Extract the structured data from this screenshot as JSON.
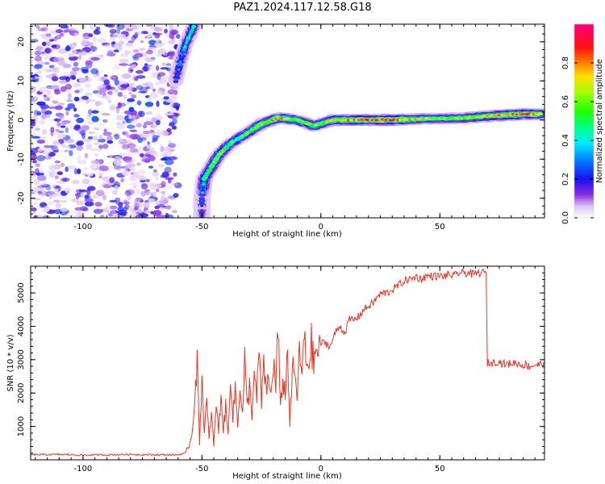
{
  "figure_title": "PAZ1.2024.117.12.58.G18",
  "chart_data": [
    {
      "type": "heatmap",
      "xlabel": "Height of straight line (km)",
      "ylabel": "Frequency (Hz)",
      "xlim": [
        -122,
        94
      ],
      "ylim": [
        -25,
        24.5
      ],
      "xticks": [
        -100,
        -50,
        0,
        50
      ],
      "yticks": [
        -20,
        -10,
        0,
        10,
        20
      ],
      "colorbar": {
        "label": "Normalized spectral amplitude",
        "ticks": [
          "0.0",
          "0.2",
          "0.4",
          "0.6",
          "0.8"
        ],
        "range": [
          0,
          1
        ],
        "colormap": "gist_ncar-like (white, purple, blue, cyan, green, yellow, orange, red, magenta)"
      },
      "noise_region_x": [
        -120,
        -60
      ],
      "ridge": {
        "description": "bright spectral ridge",
        "points": [
          {
            "x": -50,
            "y": -25,
            "amp": 0.15
          },
          {
            "x": -50,
            "y": -20,
            "amp": 0.2
          },
          {
            "x": -49,
            "y": -15,
            "amp": 0.45
          },
          {
            "x": -43,
            "y": -9,
            "amp": 0.55
          },
          {
            "x": -38,
            "y": -6,
            "amp": 0.5
          },
          {
            "x": -30,
            "y": -3,
            "amp": 0.55
          },
          {
            "x": -25,
            "y": -1,
            "amp": 0.65
          },
          {
            "x": -18,
            "y": 0.5,
            "amp": 0.75
          },
          {
            "x": -10,
            "y": 0,
            "amp": 0.6
          },
          {
            "x": -3,
            "y": -1.5,
            "amp": 0.6
          },
          {
            "x": 5,
            "y": 0,
            "amp": 0.7
          },
          {
            "x": 15,
            "y": 0,
            "amp": 0.8
          },
          {
            "x": 30,
            "y": 0,
            "amp": 0.85
          },
          {
            "x": 45,
            "y": 0.3,
            "amp": 0.6
          },
          {
            "x": 60,
            "y": 0.5,
            "amp": 0.6
          },
          {
            "x": 70,
            "y": 1,
            "amp": 0.7
          },
          {
            "x": 85,
            "y": 1.5,
            "amp": 0.85
          },
          {
            "x": 93,
            "y": 1.5,
            "amp": 0.7
          }
        ],
        "upper_branch": [
          {
            "x": -61,
            "y": 10,
            "amp": 0.2
          },
          {
            "x": -59,
            "y": 15,
            "amp": 0.3
          },
          {
            "x": -57,
            "y": 19,
            "amp": 0.35
          },
          {
            "x": -55,
            "y": 22,
            "amp": 0.4
          },
          {
            "x": -53,
            "y": 24.5,
            "amp": 0.45
          }
        ]
      }
    },
    {
      "type": "line",
      "xlabel": "Height of straight line (km)",
      "ylabel": "SNR (10 * v/v)",
      "xlim": [
        -122,
        94
      ],
      "ylim": [
        0,
        5800
      ],
      "xticks": [
        -100,
        -50,
        0,
        50
      ],
      "yticks": [
        1000,
        2000,
        3000,
        4000,
        5000
      ],
      "line_color": "#ee3322",
      "series": [
        {
          "x": [
            -122,
            -110,
            -100,
            -90,
            -80,
            -70,
            -60,
            -57,
            -55,
            -54,
            -53,
            -52,
            -51,
            -50,
            -49,
            -48,
            -47,
            -46,
            -45,
            -44,
            -43,
            -42,
            -41,
            -40,
            -39,
            -38,
            -37,
            -36,
            -35,
            -34,
            -33,
            -32,
            -31,
            -30,
            -29,
            -28,
            -27,
            -26,
            -25,
            -24,
            -23,
            -22,
            -21,
            -20,
            -19,
            -18,
            -17,
            -16,
            -15,
            -14,
            -13,
            -12,
            -11,
            -10,
            -9,
            -8,
            -7,
            -6,
            -5,
            -4,
            -3,
            -2,
            -1,
            0,
            2,
            4,
            6,
            8,
            10,
            12,
            14,
            16,
            18,
            20,
            22,
            24,
            26,
            28,
            30,
            32,
            34,
            36,
            38,
            40,
            42,
            44,
            46,
            48,
            50,
            52,
            54,
            56,
            58,
            60,
            62,
            64,
            66,
            68,
            69.5,
            70,
            72,
            74,
            76,
            78,
            80,
            82,
            84,
            86,
            88,
            90,
            92,
            94
          ],
          "y": [
            150,
            160,
            140,
            150,
            160,
            150,
            150,
            200,
            500,
            900,
            2000,
            2900,
            500,
            2600,
            800,
            1700,
            600,
            1400,
            400,
            1800,
            800,
            2000,
            900,
            1600,
            700,
            2700,
            1200,
            2200,
            1000,
            2400,
            1300,
            3000,
            1500,
            2200,
            1400,
            2500,
            1800,
            3300,
            1700,
            2700,
            2200,
            2300,
            1900,
            3000,
            2100,
            4000,
            1400,
            2500,
            1900,
            3300,
            1000,
            2700,
            2500,
            2000,
            3100,
            2600,
            3600,
            2800,
            3000,
            3500,
            2800,
            3400,
            3100,
            3500,
            3500,
            3400,
            3800,
            4000,
            3800,
            4200,
            4200,
            4300,
            4500,
            4600,
            4700,
            4900,
            5000,
            5000,
            5100,
            5200,
            5300,
            5400,
            5400,
            5500,
            5400,
            5500,
            5500,
            5500,
            5500,
            5500,
            5550,
            5500,
            5600,
            5600,
            5600,
            5550,
            5600,
            5600,
            5600,
            2900,
            2900,
            2950,
            2900,
            2850,
            2900,
            2900,
            2850,
            2850,
            2800,
            2850,
            2850,
            2900
          ]
        }
      ]
    }
  ]
}
